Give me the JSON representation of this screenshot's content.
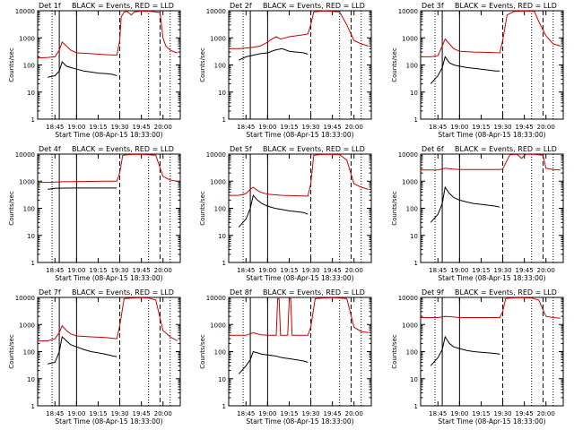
{
  "figure": {
    "start_time_label": "Start Time (08-Apr-15 18:33:00)",
    "ylabel": "Counts/sec",
    "legend_text": "BLACK = Events, RED = LLD",
    "colors": {
      "events": "#000000",
      "lld": "#cc0000",
      "axes": "#000000",
      "background": "#ffffff"
    }
  },
  "chart_data": [
    {
      "type": "line",
      "title": "Det 1f",
      "legend": "BLACK = Events, RED = LLD",
      "xlabel": "Start Time (08-Apr-15 18:33:00)",
      "ylabel": "Counts/sec",
      "yscale": "log",
      "ylim": [
        1,
        10000
      ],
      "xlim": [
        "18:33",
        "20:12"
      ],
      "x_ticks": [
        "18:45",
        "19:00",
        "19:15",
        "19:30",
        "19:45",
        "20:00"
      ],
      "y_ticks": [
        "1",
        "10",
        "100",
        "1000",
        "10000"
      ],
      "series": [
        {
          "name": "BLACK = Events",
          "x": [
            "18:40",
            "18:45",
            "18:48",
            "18:50",
            "18:53",
            "18:56",
            "19:00",
            "19:05",
            "19:10",
            "19:15",
            "19:20",
            "19:25",
            "19:28"
          ],
          "values": [
            35,
            40,
            60,
            130,
            90,
            80,
            70,
            60,
            55,
            50,
            48,
            45,
            40
          ]
        },
        {
          "name": "RED = LLD",
          "x": [
            "18:33",
            "18:40",
            "18:45",
            "18:48",
            "18:50",
            "18:53",
            "18:56",
            "19:00",
            "19:10",
            "19:20",
            "19:28",
            "19:30",
            "19:31",
            "19:33",
            "19:35",
            "19:38",
            "19:40",
            "19:43",
            "19:45",
            "19:48",
            "19:50",
            "19:52",
            "19:55",
            "19:58",
            "20:00",
            "20:02",
            "20:05",
            "20:08",
            "20:10"
          ],
          "values": [
            180,
            190,
            200,
            350,
            700,
            500,
            350,
            280,
            260,
            240,
            230,
            800,
            6000,
            9000,
            9500,
            7000,
            9000,
            9500,
            9800,
            9500,
            9600,
            9500,
            9000,
            8500,
            1000,
            500,
            350,
            300,
            280
          ]
        }
      ]
    },
    {
      "type": "line",
      "title": "Det 2f",
      "legend": "BLACK = Events, RED = LLD",
      "xlabel": "Start Time (08-Apr-15 18:33:00)",
      "ylabel": "Counts/sec",
      "yscale": "log",
      "ylim": [
        1,
        10000
      ],
      "xlim": [
        "18:33",
        "20:12"
      ],
      "x_ticks": [
        "18:45",
        "19:00",
        "19:15",
        "19:30",
        "19:45",
        "20:00"
      ],
      "y_ticks": [
        "1",
        "10",
        "100",
        "1000",
        "10000"
      ],
      "series": [
        {
          "name": "BLACK = Events",
          "x": [
            "18:40",
            "18:45",
            "18:50",
            "18:55",
            "19:00",
            "19:05",
            "19:10",
            "19:15",
            "19:20",
            "19:25",
            "19:28"
          ],
          "values": [
            150,
            200,
            230,
            260,
            280,
            350,
            400,
            320,
            300,
            280,
            250
          ]
        },
        {
          "name": "RED = LLD",
          "x": [
            "18:33",
            "18:40",
            "18:45",
            "18:50",
            "18:55",
            "19:00",
            "19:03",
            "19:06",
            "19:09",
            "19:12",
            "19:15",
            "19:20",
            "19:25",
            "19:28",
            "19:30",
            "19:32",
            "19:35",
            "19:40",
            "19:45",
            "19:50",
            "19:55",
            "20:00",
            "20:05",
            "20:10"
          ],
          "values": [
            400,
            400,
            420,
            450,
            500,
            700,
            900,
            1100,
            900,
            1000,
            1100,
            1200,
            1300,
            1400,
            3000,
            9000,
            9500,
            9800,
            9500,
            9000,
            3000,
            800,
            600,
            500
          ]
        }
      ]
    },
    {
      "type": "line",
      "title": "Det 3f",
      "legend": "BLACK = Events, RED = LLD",
      "xlabel": "Start Time (08-Apr-15 18:33:00)",
      "ylabel": "Counts/sec",
      "yscale": "log",
      "ylim": [
        1,
        10000
      ],
      "xlim": [
        "18:33",
        "20:12"
      ],
      "x_ticks": [
        "18:45",
        "19:00",
        "19:15",
        "19:30",
        "19:45",
        "20:00"
      ],
      "y_ticks": [
        "1",
        "10",
        "100",
        "1000",
        "10000"
      ],
      "series": [
        {
          "name": "BLACK = Events",
          "x": [
            "18:40",
            "18:45",
            "18:48",
            "18:50",
            "18:53",
            "18:56",
            "19:00",
            "19:05",
            "19:10",
            "19:15",
            "19:20",
            "19:25",
            "19:28"
          ],
          "values": [
            20,
            40,
            80,
            200,
            120,
            100,
            90,
            80,
            75,
            70,
            65,
            60,
            60
          ]
        },
        {
          "name": "RED = LLD",
          "x": [
            "18:33",
            "18:40",
            "18:45",
            "18:48",
            "18:50",
            "18:53",
            "18:56",
            "19:00",
            "19:10",
            "19:20",
            "19:28",
            "19:30",
            "19:33",
            "19:38",
            "19:45",
            "19:52",
            "19:55",
            "20:00",
            "20:05",
            "20:10"
          ],
          "values": [
            200,
            200,
            220,
            500,
            900,
            600,
            400,
            320,
            300,
            290,
            280,
            800,
            7000,
            9500,
            9800,
            9500,
            4000,
            1200,
            600,
            500
          ]
        }
      ]
    },
    {
      "type": "line",
      "title": "Det 4f",
      "legend": "BLACK = Events, RED = LLD",
      "xlabel": "Start Time (08-Apr-15 18:33:00)",
      "ylabel": "Counts/sec",
      "yscale": "log",
      "ylim": [
        1,
        10000
      ],
      "xlim": [
        "18:33",
        "20:12"
      ],
      "x_ticks": [
        "18:45",
        "19:00",
        "19:15",
        "19:30",
        "19:45",
        "20:00"
      ],
      "y_ticks": [
        "1",
        "10",
        "100",
        "1000",
        "10000"
      ],
      "series": [
        {
          "name": "BLACK = Events",
          "x": [
            "18:40",
            "18:45",
            "19:00",
            "19:15",
            "19:25",
            "19:28"
          ],
          "values": [
            500,
            550,
            560,
            560,
            560,
            560
          ]
        },
        {
          "name": "RED = LLD",
          "x": [
            "18:33",
            "18:40",
            "18:45",
            "18:50",
            "19:00",
            "19:10",
            "19:20",
            "19:28",
            "19:30",
            "19:32",
            "19:35",
            "19:40",
            "19:45",
            "19:50",
            "19:55",
            "20:00",
            "20:05",
            "20:10"
          ],
          "values": [
            900,
            900,
            920,
            950,
            960,
            980,
            1000,
            1000,
            2000,
            9000,
            9500,
            9800,
            9700,
            9500,
            9000,
            1500,
            1100,
            1000
          ]
        }
      ]
    },
    {
      "type": "line",
      "title": "Det 5f",
      "legend": "BLACK = Events, RED = LLD",
      "xlabel": "Start Time (08-Apr-15 18:33:00)",
      "ylabel": "Counts/sec",
      "yscale": "log",
      "ylim": [
        1,
        10000
      ],
      "xlim": [
        "18:33",
        "20:12"
      ],
      "x_ticks": [
        "18:45",
        "19:00",
        "19:15",
        "19:30",
        "19:45",
        "20:00"
      ],
      "y_ticks": [
        "1",
        "10",
        "100",
        "1000",
        "10000"
      ],
      "series": [
        {
          "name": "BLACK = Events",
          "x": [
            "18:40",
            "18:45",
            "18:48",
            "18:50",
            "18:53",
            "18:56",
            "19:00",
            "19:05",
            "19:10",
            "19:15",
            "19:20",
            "19:25",
            "19:28"
          ],
          "values": [
            20,
            40,
            100,
            300,
            200,
            150,
            120,
            100,
            90,
            80,
            75,
            70,
            60
          ]
        },
        {
          "name": "RED = LLD",
          "x": [
            "18:33",
            "18:40",
            "18:45",
            "18:48",
            "18:50",
            "18:53",
            "18:56",
            "19:00",
            "19:10",
            "19:20",
            "19:28",
            "19:30",
            "19:32",
            "19:35",
            "19:40",
            "19:45",
            "19:50",
            "19:55",
            "20:00",
            "20:05",
            "20:10"
          ],
          "values": [
            300,
            300,
            350,
            500,
            600,
            450,
            380,
            330,
            300,
            290,
            280,
            800,
            9000,
            9500,
            9800,
            9700,
            9500,
            6000,
            800,
            600,
            500
          ]
        }
      ]
    },
    {
      "type": "line",
      "title": "Det 6f",
      "legend": "BLACK = Events, RED = LLD",
      "xlabel": "Start Time (08-Apr-15 18:33:00)",
      "ylabel": "Counts/sec",
      "yscale": "log",
      "ylim": [
        1,
        10000
      ],
      "xlim": [
        "18:33",
        "20:12"
      ],
      "x_ticks": [
        "18:45",
        "19:00",
        "19:15",
        "19:30",
        "19:45",
        "20:00"
      ],
      "y_ticks": [
        "1",
        "10",
        "100",
        "1000",
        "10000"
      ],
      "series": [
        {
          "name": "BLACK = Events",
          "x": [
            "18:40",
            "18:45",
            "18:48",
            "18:50",
            "18:53",
            "18:56",
            "19:00",
            "19:05",
            "19:10",
            "19:15",
            "19:20",
            "19:25",
            "19:28"
          ],
          "values": [
            30,
            60,
            150,
            600,
            350,
            250,
            200,
            170,
            150,
            140,
            130,
            120,
            110
          ]
        },
        {
          "name": "RED = LLD",
          "x": [
            "18:33",
            "18:45",
            "18:50",
            "18:55",
            "19:00",
            "19:15",
            "19:28",
            "19:30",
            "19:35",
            "19:40",
            "19:43",
            "19:46",
            "19:50",
            "19:55",
            "19:58",
            "20:00",
            "20:05",
            "20:10"
          ],
          "values": [
            2600,
            2600,
            3000,
            2800,
            2700,
            2700,
            2700,
            2800,
            9500,
            9800,
            7000,
            9800,
            9900,
            9500,
            9000,
            3000,
            2700,
            2600
          ]
        }
      ]
    },
    {
      "type": "line",
      "title": "Det 7f",
      "legend": "BLACK = Events, RED = LLD",
      "xlabel": "Start Time (08-Apr-15 18:33:00)",
      "ylabel": "Counts/sec",
      "yscale": "log",
      "ylim": [
        1,
        10000
      ],
      "xlim": [
        "18:33",
        "20:12"
      ],
      "x_ticks": [
        "18:45",
        "19:00",
        "19:15",
        "19:30",
        "19:45",
        "20:00"
      ],
      "y_ticks": [
        "1",
        "10",
        "100",
        "1000",
        "10000"
      ],
      "series": [
        {
          "name": "BLACK = Events",
          "x": [
            "18:40",
            "18:45",
            "18:48",
            "18:50",
            "18:53",
            "18:56",
            "19:00",
            "19:05",
            "19:10",
            "19:15",
            "19:20",
            "19:25",
            "19:28"
          ],
          "values": [
            35,
            40,
            100,
            350,
            250,
            180,
            150,
            120,
            100,
            90,
            80,
            70,
            65
          ]
        },
        {
          "name": "RED = LLD",
          "x": [
            "18:33",
            "18:40",
            "18:45",
            "18:48",
            "18:50",
            "18:53",
            "18:56",
            "19:00",
            "19:10",
            "19:20",
            "19:28",
            "19:30",
            "19:33",
            "19:38",
            "19:45",
            "19:50",
            "19:55",
            "20:00",
            "20:05",
            "20:10"
          ],
          "values": [
            250,
            250,
            300,
            500,
            900,
            600,
            450,
            380,
            350,
            330,
            300,
            900,
            9000,
            9500,
            9800,
            9500,
            8000,
            600,
            350,
            250
          ]
        }
      ]
    },
    {
      "type": "line",
      "title": "Det 8f",
      "legend": "BLACK = Events, RED = LLD",
      "xlabel": "Start Time (08-Apr-15 18:33:00)",
      "ylabel": "Counts/sec",
      "yscale": "log",
      "ylim": [
        1,
        10000
      ],
      "xlim": [
        "18:33",
        "20:12"
      ],
      "x_ticks": [
        "18:45",
        "19:00",
        "19:15",
        "19:30",
        "19:45",
        "20:00"
      ],
      "y_ticks": [
        "1",
        "10",
        "100",
        "1000",
        "10000"
      ],
      "series": [
        {
          "name": "BLACK = Events",
          "x": [
            "18:40",
            "18:45",
            "18:48",
            "18:50",
            "18:53",
            "18:56",
            "19:00",
            "19:05",
            "19:10",
            "19:15",
            "19:20",
            "19:25",
            "19:28"
          ],
          "values": [
            15,
            30,
            50,
            100,
            90,
            80,
            75,
            70,
            60,
            55,
            50,
            45,
            40
          ]
        },
        {
          "name": "RED = LLD",
          "x": [
            "18:33",
            "18:45",
            "18:50",
            "18:55",
            "19:00",
            "19:06",
            "19:07",
            "19:08",
            "19:09",
            "19:14",
            "19:15",
            "19:16",
            "19:17",
            "19:28",
            "19:30",
            "19:33",
            "19:38",
            "19:45",
            "19:50",
            "19:55",
            "20:00",
            "20:05",
            "20:10"
          ],
          "values": [
            400,
            400,
            500,
            420,
            400,
            400,
            9000,
            9000,
            400,
            400,
            9000,
            9000,
            400,
            400,
            800,
            9000,
            9500,
            9800,
            9500,
            9000,
            800,
            550,
            500
          ]
        }
      ]
    },
    {
      "type": "line",
      "title": "Det 9f",
      "legend": "BLACK = Events, RED = LLD",
      "xlabel": "Start Time (08-Apr-15 18:33:00)",
      "ylabel": "Counts/sec",
      "yscale": "log",
      "ylim": [
        1,
        10000
      ],
      "xlim": [
        "18:33",
        "20:12"
      ],
      "x_ticks": [
        "18:45",
        "19:00",
        "19:15",
        "19:30",
        "19:45",
        "20:00"
      ],
      "y_ticks": [
        "1",
        "10",
        "100",
        "1000",
        "10000"
      ],
      "series": [
        {
          "name": "BLACK = Events",
          "x": [
            "18:40",
            "18:45",
            "18:48",
            "18:50",
            "18:53",
            "18:56",
            "19:00",
            "19:05",
            "19:10",
            "19:15",
            "19:20",
            "19:25",
            "19:28"
          ],
          "values": [
            30,
            60,
            120,
            350,
            200,
            150,
            130,
            110,
            100,
            95,
            90,
            85,
            80
          ]
        },
        {
          "name": "RED = LLD",
          "x": [
            "18:33",
            "18:45",
            "18:50",
            "18:55",
            "19:00",
            "19:15",
            "19:28",
            "19:30",
            "19:32",
            "19:35",
            "19:40",
            "19:45",
            "19:50",
            "19:55",
            "20:00",
            "20:05",
            "20:10"
          ],
          "values": [
            1800,
            1800,
            2000,
            1900,
            1800,
            1800,
            1800,
            3000,
            9000,
            9500,
            9800,
            9700,
            9500,
            8000,
            2000,
            1800,
            1700
          ]
        }
      ]
    }
  ]
}
